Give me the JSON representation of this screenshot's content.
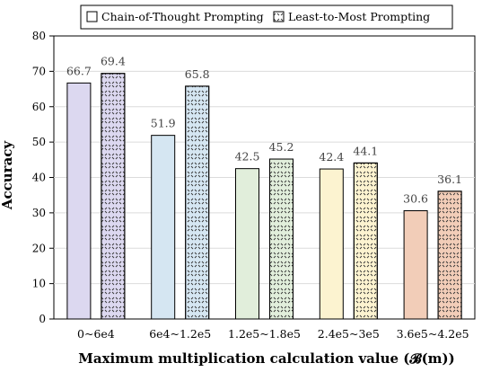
{
  "chart_data": {
    "type": "bar",
    "xlabel": "Maximum multiplication calculation value (𝓑(m))",
    "ylabel": "Accuracy",
    "ylim": [
      0,
      80
    ],
    "yticks": [
      0,
      10,
      20,
      30,
      40,
      50,
      60,
      70,
      80
    ],
    "categories": [
      "0~6e4",
      "6e4~1.2e5",
      "1.2e5~1.8e5",
      "2.4e5~3e5",
      "3.6e5~4.2e5"
    ],
    "series": [
      {
        "name": "Chain-of-Thought Prompting",
        "values": [
          66.7,
          51.9,
          42.5,
          42.4,
          30.6
        ],
        "pattern": "solid"
      },
      {
        "name": "Least-to-Most Prompting",
        "values": [
          69.4,
          65.8,
          45.2,
          44.1,
          36.1
        ],
        "pattern": "dotted"
      }
    ],
    "category_colors": [
      "#dcd8f0",
      "#d5e6f2",
      "#e1eedb",
      "#fcf3d0",
      "#f2cdb8"
    ],
    "grid": "horizontal",
    "legend_position": "top"
  }
}
